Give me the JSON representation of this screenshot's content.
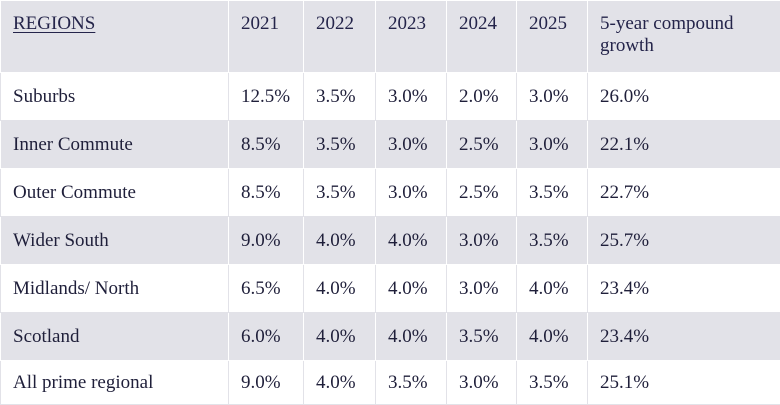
{
  "table": {
    "headers": [
      "REGIONS",
      "2021",
      "2022",
      "2023",
      "2024",
      "2025",
      "5-year compound growth"
    ],
    "rows": [
      [
        "Suburbs",
        "12.5%",
        "3.5%",
        "3.0%",
        "2.0%",
        "3.0%",
        "26.0%"
      ],
      [
        "Inner Commute",
        "8.5%",
        "3.5%",
        "3.0%",
        "2.5%",
        "3.0%",
        "22.1%"
      ],
      [
        "Outer Commute",
        "8.5%",
        "3.5%",
        "3.0%",
        "2.5%",
        "3.5%",
        "22.7%"
      ],
      [
        "Wider South",
        "9.0%",
        "4.0%",
        "4.0%",
        "3.0%",
        "3.5%",
        "25.7%"
      ],
      [
        "Midlands/ North",
        "6.5%",
        "4.0%",
        "4.0%",
        "3.0%",
        "4.0%",
        "23.4%"
      ],
      [
        "Scotland",
        "6.0%",
        "4.0%",
        "4.0%",
        "3.5%",
        "4.0%",
        "23.4%"
      ],
      [
        "All prime regional",
        "9.0%",
        "4.0%",
        "3.5%",
        "3.0%",
        "3.5%",
        "25.1%"
      ]
    ]
  }
}
